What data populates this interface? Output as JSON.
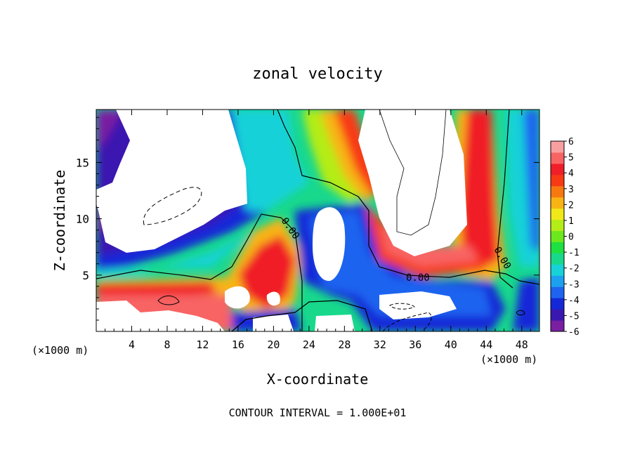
{
  "chart_data": {
    "type": "heatmap",
    "title": "zonal velocity",
    "xlabel": "X-coordinate",
    "ylabel": "Z-coordinate",
    "x_unit_label": "(×1000 m)",
    "x_unit_label_right": "(×1000 m)",
    "footer": "CONTOUR INTERVAL = 1.000E+01",
    "x_ticks": [
      "4",
      "8",
      "12",
      "16",
      "20",
      "24",
      "28",
      "32",
      "36",
      "40",
      "44",
      "48"
    ],
    "y_ticks": [
      "5",
      "10",
      "15"
    ],
    "xlim": [
      0,
      50
    ],
    "ylim": [
      0,
      19.7
    ],
    "colorbar": {
      "tick_labels": [
        "6",
        "5",
        "4",
        "3",
        "2",
        "1",
        "0",
        "-1",
        "-2",
        "-3",
        "-4",
        "-5",
        "-6"
      ],
      "range": [
        -6,
        6
      ],
      "colors": [
        "#7a1fa2",
        "#3a18b0",
        "#1428d8",
        "#1e64f0",
        "#1ea0f0",
        "#17d2d8",
        "#18d88c",
        "#1ee040",
        "#6ce81e",
        "#b4ec18",
        "#f0e818",
        "#f8b414",
        "#f87810",
        "#f83a14",
        "#f01e28",
        "#f86464",
        "#f8a0a0"
      ]
    },
    "contour_labels": [
      "0.00",
      "0.00",
      "0.00"
    ]
  }
}
